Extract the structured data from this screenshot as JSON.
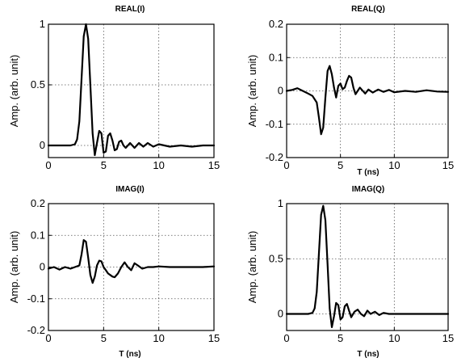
{
  "chart_data": [
    {
      "type": "line",
      "title": "REAL(I)",
      "xlabel": "",
      "ylabel": "Amp. (arb. unit)",
      "xlim": [
        0,
        15
      ],
      "ylim": [
        -0.1,
        1
      ],
      "xticks": [
        "0",
        "5",
        "10",
        "15"
      ],
      "yticks": [
        "0",
        "0.5",
        "1"
      ],
      "ytick_values": [
        0,
        0.5,
        1
      ],
      "grid": true,
      "series": [
        {
          "x": [
            0,
            1,
            2,
            2.4,
            2.6,
            2.8,
            3,
            3.2,
            3.4,
            3.6,
            3.8,
            4,
            4.2,
            4.4,
            4.6,
            4.8,
            5,
            5.2,
            5.4,
            5.6,
            5.8,
            6,
            6.2,
            6.4,
            6.6,
            6.8,
            7,
            7.4,
            7.8,
            8.2,
            8.6,
            9,
            9.5,
            10,
            11,
            12,
            13,
            14,
            15
          ],
          "y": [
            0,
            0,
            0,
            0.01,
            0.05,
            0.2,
            0.55,
            0.9,
            1.0,
            0.88,
            0.5,
            0.1,
            -0.08,
            0.02,
            0.12,
            0.1,
            -0.06,
            -0.05,
            0.08,
            0.1,
            0.04,
            -0.04,
            -0.03,
            0.03,
            0.04,
            0.0,
            -0.02,
            0.02,
            -0.02,
            0.02,
            -0.01,
            0.02,
            -0.01,
            0.01,
            -0.01,
            0.0,
            -0.01,
            0.0,
            0.0
          ]
        }
      ]
    },
    {
      "type": "line",
      "title": "REAL(Q)",
      "xlabel": "T (ns)",
      "ylabel": "Amp. (arb. unit)",
      "xlim": [
        0,
        15
      ],
      "ylim": [
        -0.2,
        0.2
      ],
      "xticks": [
        "0",
        "5",
        "10",
        "15"
      ],
      "yticks": [
        "-0.2",
        "-0.1",
        "0",
        "0.1",
        "0.2"
      ],
      "ytick_values": [
        -0.2,
        -0.1,
        0,
        0.1,
        0.2
      ],
      "grid": true,
      "series": [
        {
          "x": [
            0,
            0.5,
            1,
            1.5,
            2,
            2.4,
            2.8,
            3,
            3.2,
            3.4,
            3.6,
            3.8,
            4,
            4.2,
            4.4,
            4.6,
            4.8,
            5,
            5.2,
            5.4,
            5.6,
            5.8,
            6,
            6.2,
            6.4,
            6.6,
            6.8,
            7,
            7.3,
            7.6,
            8,
            8.5,
            9,
            9.5,
            10,
            11,
            12,
            13,
            14,
            15
          ],
          "y": [
            0,
            0.003,
            0.008,
            0.0,
            -0.008,
            -0.015,
            -0.035,
            -0.08,
            -0.13,
            -0.11,
            -0.02,
            0.06,
            0.075,
            0.05,
            0.01,
            -0.02,
            0.015,
            0.022,
            0.005,
            0.01,
            0.03,
            0.045,
            0.04,
            0.01,
            -0.01,
            0.0,
            0.01,
            0.003,
            -0.008,
            0.004,
            -0.005,
            0.004,
            -0.003,
            0.003,
            -0.004,
            0.0,
            -0.003,
            0.002,
            -0.002,
            -0.003
          ]
        }
      ]
    },
    {
      "type": "line",
      "title": "IMAG(I)",
      "xlabel": "T (ns)",
      "ylabel": "Amp. (arb. unit)",
      "xlim": [
        0,
        15
      ],
      "ylim": [
        -0.2,
        0.2
      ],
      "xticks": [
        "0",
        "5",
        "10",
        "15"
      ],
      "yticks": [
        "-0.2",
        "-0.1",
        "0",
        "0.1",
        "0.2"
      ],
      "ytick_values": [
        -0.2,
        -0.1,
        0,
        0.1,
        0.2
      ],
      "grid": true,
      "series": [
        {
          "x": [
            0,
            0.5,
            1,
            1.5,
            2,
            2.4,
            2.8,
            3,
            3.2,
            3.4,
            3.6,
            3.8,
            4,
            4.2,
            4.4,
            4.6,
            4.8,
            5,
            5.2,
            5.4,
            5.6,
            5.8,
            6,
            6.3,
            6.6,
            6.9,
            7.2,
            7.5,
            7.8,
            8.1,
            8.5,
            9,
            9.5,
            10,
            11,
            12,
            13,
            14,
            15
          ],
          "y": [
            -0.005,
            0.0,
            -0.008,
            0.0,
            -0.005,
            0.0,
            0.005,
            0.04,
            0.085,
            0.08,
            0.03,
            -0.025,
            -0.05,
            -0.03,
            0.005,
            0.02,
            0.018,
            0.0,
            -0.01,
            -0.02,
            -0.025,
            -0.03,
            -0.032,
            -0.02,
            0.0,
            0.015,
            0.0,
            -0.01,
            0.012,
            0.005,
            -0.005,
            0.0,
            0.0,
            0.002,
            0.0,
            0.0,
            0.0,
            0.0,
            0.002
          ]
        }
      ]
    },
    {
      "type": "line",
      "title": "IMAG(Q)",
      "xlabel": "T (ns)",
      "ylabel": "Amp. (arb. unit)",
      "xlim": [
        0,
        15
      ],
      "ylim": [
        -0.15,
        1
      ],
      "xticks": [
        "0",
        "5",
        "10",
        "15"
      ],
      "yticks": [
        "0",
        "0.5",
        "1"
      ],
      "ytick_values": [
        0,
        0.5,
        1
      ],
      "grid": true,
      "series": [
        {
          "x": [
            0,
            1,
            2,
            2.4,
            2.6,
            2.8,
            3,
            3.2,
            3.4,
            3.6,
            3.8,
            4,
            4.2,
            4.4,
            4.6,
            4.8,
            5,
            5.2,
            5.4,
            5.6,
            5.8,
            6,
            6.3,
            6.6,
            6.9,
            7.2,
            7.5,
            7.8,
            8.2,
            8.6,
            9,
            9.5,
            10,
            11,
            12,
            13,
            14,
            15
          ],
          "y": [
            0,
            0,
            0,
            0.01,
            0.05,
            0.2,
            0.55,
            0.9,
            0.98,
            0.85,
            0.45,
            0.05,
            -0.12,
            -0.02,
            0.1,
            0.08,
            -0.05,
            -0.03,
            0.07,
            0.09,
            0.03,
            -0.03,
            0.02,
            0.04,
            0.0,
            -0.02,
            0.03,
            0.0,
            0.02,
            -0.01,
            0.01,
            0.0,
            0.0,
            0.0,
            0.0,
            0.0,
            0.0,
            0.0
          ]
        }
      ]
    }
  ]
}
